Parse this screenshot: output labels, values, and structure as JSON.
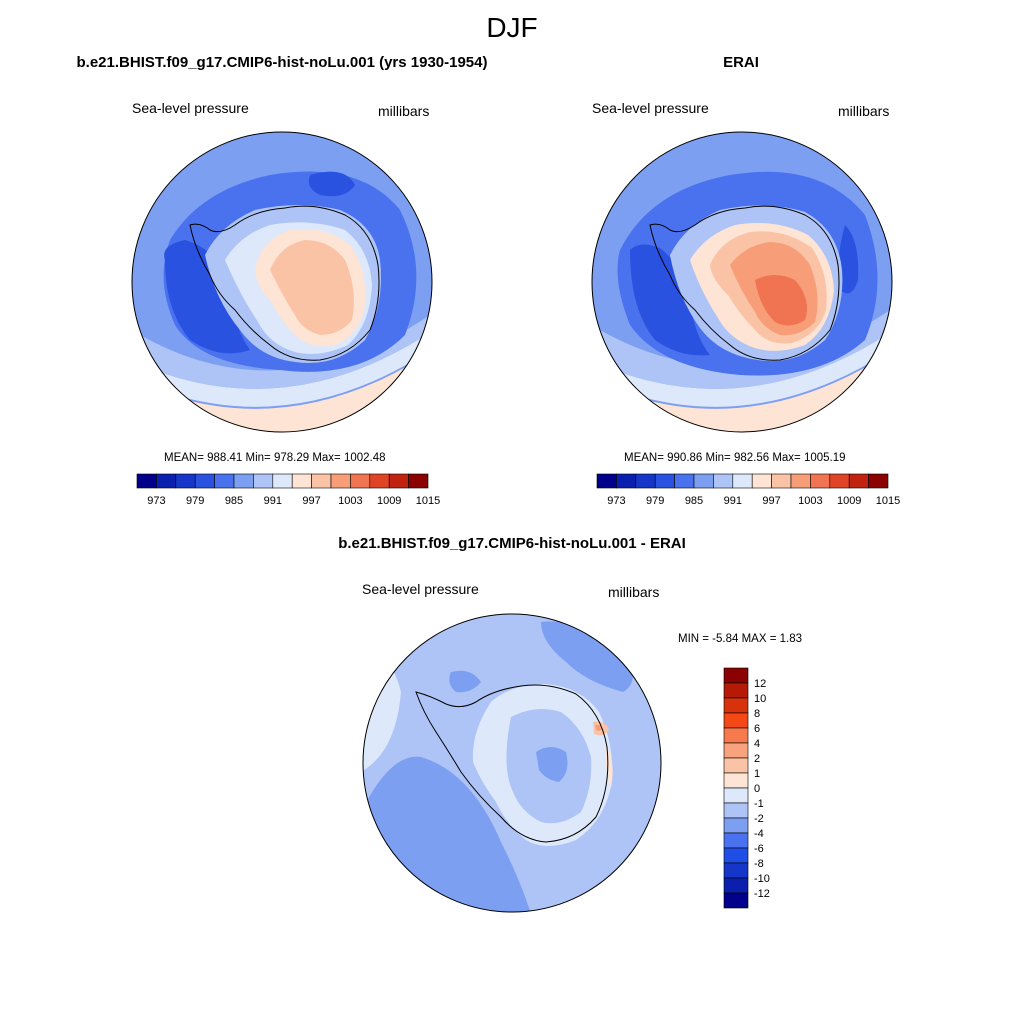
{
  "figure": {
    "title": "DJF"
  },
  "panels": {
    "model": {
      "title": "b.e21.BHIST.f09_g17.CMIP6-hist-noLu.001 (yrs 1930-1954)",
      "field_label": "Sea-level pressure",
      "units_label": "millibars",
      "stats_text": "MEAN= 988.41  Min= 978.29  Max= 1002.48",
      "stats": {
        "mean": 988.41,
        "min": 978.29,
        "max": 1002.48
      }
    },
    "obs": {
      "title": "ERAI",
      "field_label": "Sea-level pressure",
      "units_label": "millibars",
      "stats_text": "MEAN= 990.86  Min= 982.56  Max= 1005.19",
      "stats": {
        "mean": 990.86,
        "min": 982.56,
        "max": 1005.19
      }
    },
    "diff": {
      "title": "b.e21.BHIST.f09_g17.CMIP6-hist-noLu.001 - ERAI",
      "field_label": "Sea-level pressure",
      "units_label": "millibars",
      "stats_text": "MIN =  -5.84 MAX =   1.83",
      "stats": {
        "min": -5.84,
        "max": 1.83
      }
    }
  },
  "colorbars": {
    "abs": {
      "tick_labels": [
        "973",
        "979",
        "985",
        "991",
        "997",
        "1003",
        "1009",
        "1015"
      ],
      "colors": [
        "#00008b",
        "#0a1fae",
        "#1536c8",
        "#2a52e0",
        "#4a72ee",
        "#7c9ff2",
        "#aec4f6",
        "#dde8fb",
        "#fde4d4",
        "#fbc3a6",
        "#f79e79",
        "#f07352",
        "#e04426",
        "#c22210",
        "#8b0000"
      ]
    },
    "diff": {
      "tick_labels": [
        "12",
        "10",
        "8",
        "6",
        "4",
        "2",
        "1",
        "0",
        "-1",
        "-2",
        "-4",
        "-6",
        "-8",
        "-10",
        "-12"
      ],
      "colors": [
        "#8b0000",
        "#b51a06",
        "#d8320c",
        "#f44816",
        "#f67a4e",
        "#f9a27e",
        "#fbc3a6",
        "#fde4d4",
        "#dde8fb",
        "#aec4f6",
        "#7c9ff2",
        "#4a72ee",
        "#1f4ee6",
        "#1536c8",
        "#0a1fae",
        "#00008b"
      ]
    }
  },
  "colors": {
    "palette_mid_blue": "#5b84ec",
    "palette_light_blue": "#aec4f6",
    "palette_lightest_blue": "#dde8fb",
    "palette_peach": "#fde4d4",
    "palette_salmon": "#f79e79"
  }
}
